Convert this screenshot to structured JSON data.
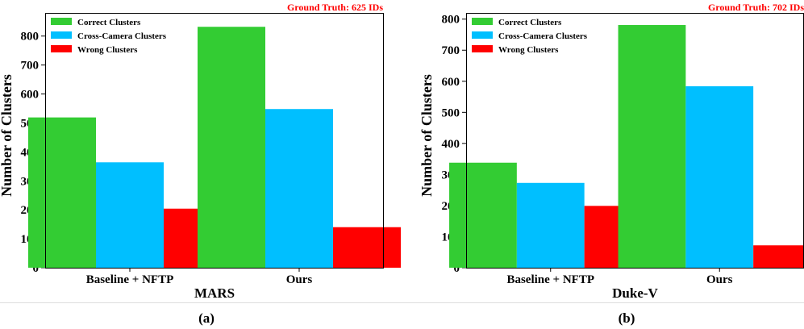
{
  "colors": {
    "correct": "#33cc33",
    "cross_camera": "#00bfff",
    "wrong": "#ff0000",
    "ground_truth_text": "#ff0000"
  },
  "chart_data": [
    {
      "type": "bar",
      "ground_truth": "Ground Truth: 625 IDs",
      "xlabel": "MARS",
      "ylabel": "Number of Clusters",
      "caption": "(a)",
      "categories": [
        "Baseline + NFTP",
        "Ours"
      ],
      "series": [
        {
          "name": "Correct Clusters",
          "color": "#33cc33",
          "values": [
            519,
            832
          ]
        },
        {
          "name": "Cross-Camera Clusters",
          "color": "#00bfff",
          "values": [
            364,
            548
          ]
        },
        {
          "name": "Wrong Clusters",
          "color": "#ff0000",
          "values": [
            204,
            140
          ]
        }
      ],
      "ylim": [
        0,
        880
      ],
      "yticks": [
        "0",
        "100",
        "200",
        "300",
        "400",
        "500",
        "600",
        "700",
        "800"
      ],
      "legend": "top-left",
      "grid": false
    },
    {
      "type": "bar",
      "ground_truth": "Ground Truth: 702 IDs",
      "xlabel": "Duke-V",
      "ylabel": "Number of Clusters",
      "caption": "(b)",
      "categories": [
        "Baseline + NFTP",
        "Ours"
      ],
      "series": [
        {
          "name": "Correct Clusters",
          "color": "#33cc33",
          "values": [
            338,
            781
          ]
        },
        {
          "name": "Cross-Camera Clusters",
          "color": "#00bfff",
          "values": [
            273,
            584
          ]
        },
        {
          "name": "Wrong Clusters",
          "color": "#ff0000",
          "values": [
            199,
            72
          ]
        }
      ],
      "ylim": [
        0,
        820
      ],
      "yticks": [
        "0",
        "100",
        "200",
        "300",
        "400",
        "500",
        "600",
        "700",
        "800"
      ],
      "legend": "top-left",
      "grid": false
    }
  ]
}
